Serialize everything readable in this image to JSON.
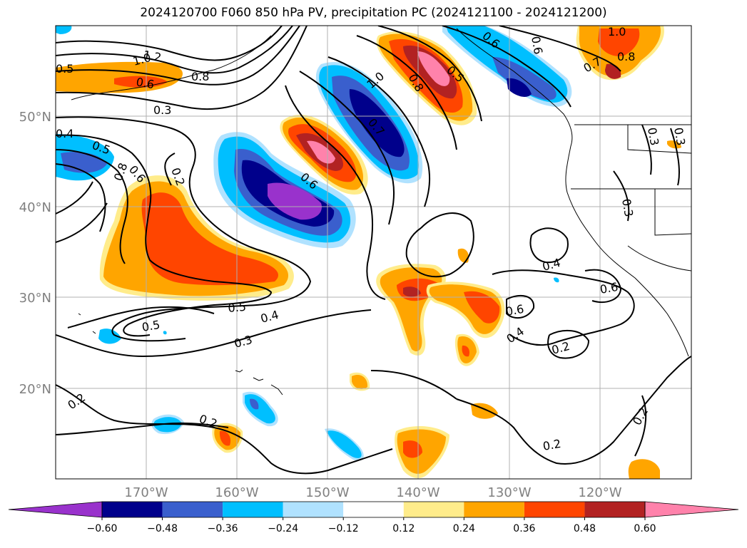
{
  "title": "2024120700 F060 850 hPa PV, precipitation PC (2024121100 - 2024121200)",
  "axes": {
    "lat_labels": [
      "50°N",
      "40°N",
      "30°N",
      "20°N"
    ],
    "lon_labels": [
      "170°W",
      "160°W",
      "150°W",
      "140°W",
      "130°W",
      "120°W"
    ]
  },
  "colorbar": {
    "tick_labels": [
      "−0.60",
      "−0.48",
      "−0.36",
      "−0.24",
      "−0.12",
      "0.12",
      "0.24",
      "0.36",
      "0.48",
      "0.60"
    ],
    "colors": [
      "#9932cc",
      "#00008b",
      "#3a5fcd",
      "#00bfff",
      "#b0e2ff",
      "#ffffff",
      "#ffec8b",
      "#ffa500",
      "#ff4500",
      "#b22222",
      "#ff82ab"
    ]
  },
  "contour_labels": [
    {
      "text": "1.2"
    },
    {
      "text": "1.0"
    },
    {
      "text": "0.5"
    },
    {
      "text": "0.6"
    },
    {
      "text": "0.8"
    },
    {
      "text": "0.3"
    },
    {
      "text": "0.4"
    },
    {
      "text": "0.5"
    },
    {
      "text": "0.8"
    },
    {
      "text": "0.6"
    },
    {
      "text": "0.2"
    },
    {
      "text": "0.6"
    },
    {
      "text": "1.0"
    },
    {
      "text": "0.7"
    },
    {
      "text": "0.8"
    },
    {
      "text": "0.5"
    },
    {
      "text": "0.6"
    },
    {
      "text": "1.0"
    },
    {
      "text": "0.8"
    },
    {
      "text": "0.7"
    },
    {
      "text": "0.6"
    },
    {
      "text": "0.3"
    },
    {
      "text": "0.3"
    },
    {
      "text": "0.3"
    },
    {
      "text": "0.4"
    },
    {
      "text": "0.6"
    },
    {
      "text": "0.6"
    },
    {
      "text": "0.4"
    },
    {
      "text": "0.2"
    },
    {
      "text": "0.5"
    },
    {
      "text": "0.5"
    },
    {
      "text": "0.4"
    },
    {
      "text": "0.3"
    },
    {
      "text": "0.2"
    },
    {
      "text": "0.2"
    },
    {
      "text": "0.2"
    },
    {
      "text": "0.2"
    }
  ]
}
